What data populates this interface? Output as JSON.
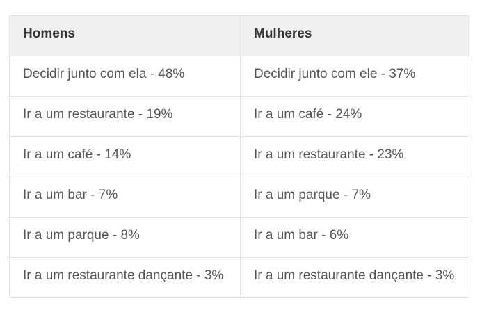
{
  "table": {
    "columns": [
      "Homens",
      "Mulheres"
    ],
    "rows": [
      [
        "Decidir junto com ela - 48%",
        "Decidir junto com ele - 37%"
      ],
      [
        "Ir a um restaurante - 19%",
        "Ir a um café - 24%"
      ],
      [
        "Ir a um café - 14%",
        "Ir a um restaurante - 23%"
      ],
      [
        "Ir a um bar - 7%",
        "Ir a um parque - 7%"
      ],
      [
        "Ir a um parque - 8%",
        "Ir a um bar - 6%"
      ],
      [
        "Ir a um restaurante dançante - 3%",
        "Ir a um restaurante dançante - 3%"
      ]
    ],
    "colors": {
      "header_background": "#efefef",
      "border": "#e2e2e2",
      "header_text": "#333333",
      "body_text": "#555555",
      "page_background": "#ffffff"
    }
  },
  "chart_data": {
    "type": "table",
    "title": "",
    "columns": [
      "Homens",
      "Mulheres"
    ],
    "rows": [
      [
        "Decidir junto com ela - 48%",
        "Decidir junto com ele - 37%"
      ],
      [
        "Ir a um restaurante - 19%",
        "Ir a um café - 24%"
      ],
      [
        "Ir a um café - 14%",
        "Ir a um restaurante - 23%"
      ],
      [
        "Ir a um bar - 7%",
        "Ir a um parque - 7%"
      ],
      [
        "Ir a um parque - 8%",
        "Ir a um bar - 6%"
      ],
      [
        "Ir a um restaurante dançante - 3%",
        "Ir a um restaurante dançante - 3%"
      ]
    ],
    "series": [
      {
        "name": "Homens",
        "categories": [
          "Decidir junto com ela",
          "Ir a um restaurante",
          "Ir a um café",
          "Ir a um bar",
          "Ir a um parque",
          "Ir a um restaurante dançante"
        ],
        "values": [
          48,
          19,
          14,
          7,
          8,
          3
        ],
        "unit": "%"
      },
      {
        "name": "Mulheres",
        "categories": [
          "Decidir junto com ele",
          "Ir a um café",
          "Ir a um restaurante",
          "Ir a um parque",
          "Ir a um bar",
          "Ir a um restaurante dançante"
        ],
        "values": [
          37,
          24,
          23,
          7,
          6,
          3
        ],
        "unit": "%"
      }
    ],
    "layout_hints": {
      "header_shaded": true,
      "grid": true,
      "column_split": "50/50"
    }
  }
}
